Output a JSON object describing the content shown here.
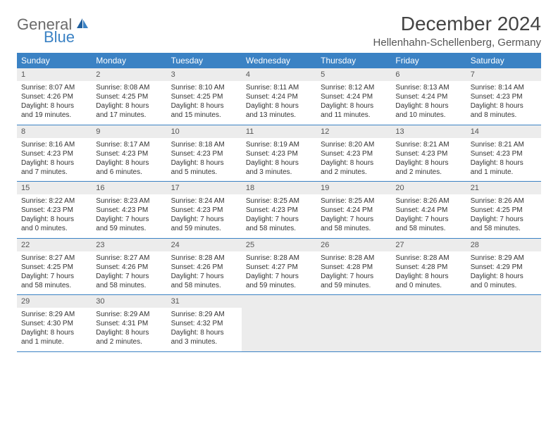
{
  "logo": {
    "general": "General",
    "blue": "Blue"
  },
  "title": "December 2024",
  "location": "Hellenhahn-Schellenberg, Germany",
  "colors": {
    "header_bg": "#3b82c4",
    "header_text": "#ffffff",
    "daynum_bg": "#ececec",
    "text": "#333333",
    "rule": "#3b82c4"
  },
  "weekdays": [
    "Sunday",
    "Monday",
    "Tuesday",
    "Wednesday",
    "Thursday",
    "Friday",
    "Saturday"
  ],
  "weeks": [
    [
      {
        "n": "1",
        "sr": "8:07 AM",
        "ss": "4:26 PM",
        "dl": "8 hours and 19 minutes."
      },
      {
        "n": "2",
        "sr": "8:08 AM",
        "ss": "4:25 PM",
        "dl": "8 hours and 17 minutes."
      },
      {
        "n": "3",
        "sr": "8:10 AM",
        "ss": "4:25 PM",
        "dl": "8 hours and 15 minutes."
      },
      {
        "n": "4",
        "sr": "8:11 AM",
        "ss": "4:24 PM",
        "dl": "8 hours and 13 minutes."
      },
      {
        "n": "5",
        "sr": "8:12 AM",
        "ss": "4:24 PM",
        "dl": "8 hours and 11 minutes."
      },
      {
        "n": "6",
        "sr": "8:13 AM",
        "ss": "4:24 PM",
        "dl": "8 hours and 10 minutes."
      },
      {
        "n": "7",
        "sr": "8:14 AM",
        "ss": "4:23 PM",
        "dl": "8 hours and 8 minutes."
      }
    ],
    [
      {
        "n": "8",
        "sr": "8:16 AM",
        "ss": "4:23 PM",
        "dl": "8 hours and 7 minutes."
      },
      {
        "n": "9",
        "sr": "8:17 AM",
        "ss": "4:23 PM",
        "dl": "8 hours and 6 minutes."
      },
      {
        "n": "10",
        "sr": "8:18 AM",
        "ss": "4:23 PM",
        "dl": "8 hours and 5 minutes."
      },
      {
        "n": "11",
        "sr": "8:19 AM",
        "ss": "4:23 PM",
        "dl": "8 hours and 3 minutes."
      },
      {
        "n": "12",
        "sr": "8:20 AM",
        "ss": "4:23 PM",
        "dl": "8 hours and 2 minutes."
      },
      {
        "n": "13",
        "sr": "8:21 AM",
        "ss": "4:23 PM",
        "dl": "8 hours and 2 minutes."
      },
      {
        "n": "14",
        "sr": "8:21 AM",
        "ss": "4:23 PM",
        "dl": "8 hours and 1 minute."
      }
    ],
    [
      {
        "n": "15",
        "sr": "8:22 AM",
        "ss": "4:23 PM",
        "dl": "8 hours and 0 minutes."
      },
      {
        "n": "16",
        "sr": "8:23 AM",
        "ss": "4:23 PM",
        "dl": "7 hours and 59 minutes."
      },
      {
        "n": "17",
        "sr": "8:24 AM",
        "ss": "4:23 PM",
        "dl": "7 hours and 59 minutes."
      },
      {
        "n": "18",
        "sr": "8:25 AM",
        "ss": "4:23 PM",
        "dl": "7 hours and 58 minutes."
      },
      {
        "n": "19",
        "sr": "8:25 AM",
        "ss": "4:24 PM",
        "dl": "7 hours and 58 minutes."
      },
      {
        "n": "20",
        "sr": "8:26 AM",
        "ss": "4:24 PM",
        "dl": "7 hours and 58 minutes."
      },
      {
        "n": "21",
        "sr": "8:26 AM",
        "ss": "4:25 PM",
        "dl": "7 hours and 58 minutes."
      }
    ],
    [
      {
        "n": "22",
        "sr": "8:27 AM",
        "ss": "4:25 PM",
        "dl": "7 hours and 58 minutes."
      },
      {
        "n": "23",
        "sr": "8:27 AM",
        "ss": "4:26 PM",
        "dl": "7 hours and 58 minutes."
      },
      {
        "n": "24",
        "sr": "8:28 AM",
        "ss": "4:26 PM",
        "dl": "7 hours and 58 minutes."
      },
      {
        "n": "25",
        "sr": "8:28 AM",
        "ss": "4:27 PM",
        "dl": "7 hours and 59 minutes."
      },
      {
        "n": "26",
        "sr": "8:28 AM",
        "ss": "4:28 PM",
        "dl": "7 hours and 59 minutes."
      },
      {
        "n": "27",
        "sr": "8:28 AM",
        "ss": "4:28 PM",
        "dl": "8 hours and 0 minutes."
      },
      {
        "n": "28",
        "sr": "8:29 AM",
        "ss": "4:29 PM",
        "dl": "8 hours and 0 minutes."
      }
    ],
    [
      {
        "n": "29",
        "sr": "8:29 AM",
        "ss": "4:30 PM",
        "dl": "8 hours and 1 minute."
      },
      {
        "n": "30",
        "sr": "8:29 AM",
        "ss": "4:31 PM",
        "dl": "8 hours and 2 minutes."
      },
      {
        "n": "31",
        "sr": "8:29 AM",
        "ss": "4:32 PM",
        "dl": "8 hours and 3 minutes."
      },
      null,
      null,
      null,
      null
    ]
  ],
  "labels": {
    "sunrise": "Sunrise: ",
    "sunset": "Sunset: ",
    "daylight": "Daylight: "
  }
}
